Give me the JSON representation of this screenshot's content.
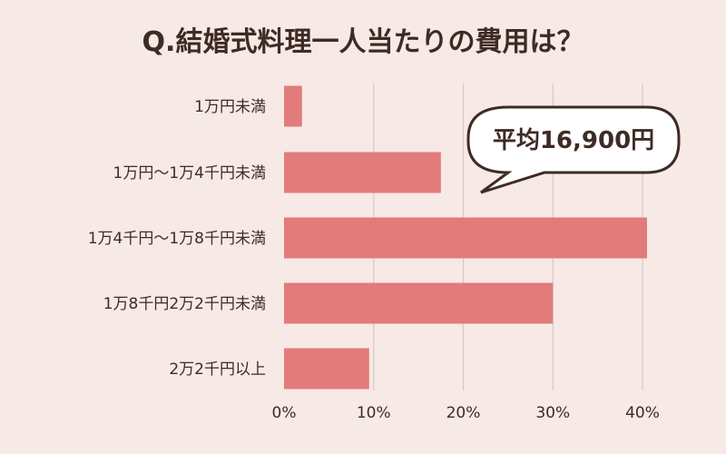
{
  "chart_data": {
    "type": "bar",
    "orientation": "horizontal",
    "title": "Q.結婚式料理一人当たりの費用は？",
    "categories": [
      "1万円未満",
      "1万円〜1万4千円未満",
      "1万4千円〜1万8千円未満",
      "1万8千円2万2千円未満",
      "2万2千円以上"
    ],
    "values": [
      2,
      17.5,
      40.5,
      30,
      9.5
    ],
    "xlim": [
      0,
      40
    ],
    "x_ticks": [
      "0%",
      "10%",
      "20%",
      "30%",
      "40%"
    ],
    "x_tick_values": [
      0,
      10,
      20,
      30,
      40
    ],
    "grid": true,
    "callout": "平均16,900円",
    "colors": {
      "bar": "#e27b7b",
      "background": "#f7e9e5",
      "grid": "#d8c8c4",
      "text": "#3f2b25",
      "callout_fill": "#ffffff",
      "callout_stroke": "#3f2b25"
    }
  }
}
